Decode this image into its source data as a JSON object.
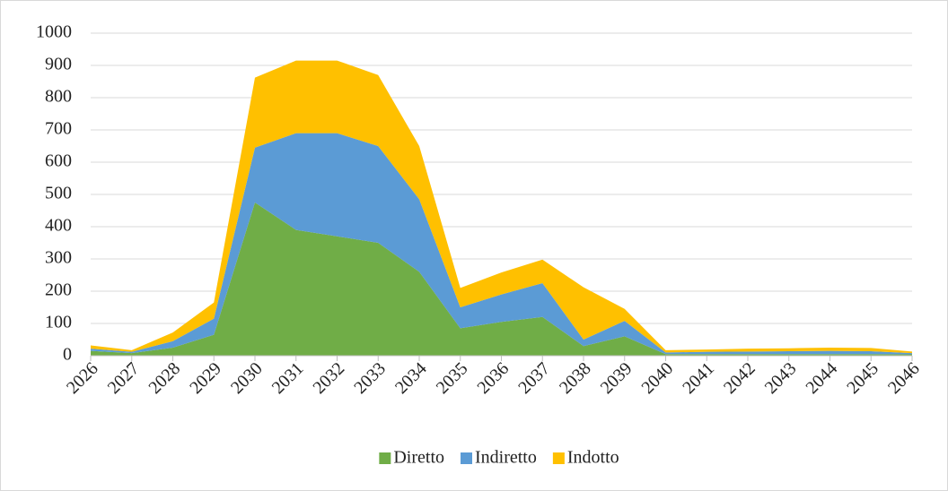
{
  "chart_data": {
    "type": "stacked_area",
    "categories": [
      "2026",
      "2027",
      "2028",
      "2029",
      "2030",
      "2031",
      "2032",
      "2033",
      "2034",
      "2035",
      "2036",
      "2037",
      "2038",
      "2039",
      "2040",
      "2041",
      "2042",
      "2043",
      "2044",
      "2045",
      "2046"
    ],
    "series": [
      {
        "name": "Diretto",
        "color": "#70ad47",
        "values": [
          15,
          8,
          25,
          65,
          475,
          390,
          370,
          350,
          260,
          85,
          105,
          120,
          30,
          60,
          5,
          5,
          5,
          5,
          5,
          5,
          4
        ]
      },
      {
        "name": "Indiretto",
        "color": "#5b9bd5",
        "values": [
          7,
          4,
          20,
          50,
          170,
          300,
          320,
          300,
          225,
          65,
          85,
          105,
          20,
          48,
          5,
          7,
          8,
          9,
          10,
          9,
          4
        ]
      },
      {
        "name": "Indotto",
        "color": "#ffc000",
        "values": [
          10,
          5,
          27,
          50,
          217,
          225,
          225,
          220,
          165,
          60,
          68,
          73,
          162,
          37,
          7,
          7,
          9,
          9,
          10,
          10,
          5
        ]
      }
    ],
    "ylim": [
      0,
      1000
    ],
    "yticks": [
      0,
      100,
      200,
      300,
      400,
      500,
      600,
      700,
      800,
      900,
      1000
    ],
    "grid": true,
    "legend": "bottom"
  }
}
